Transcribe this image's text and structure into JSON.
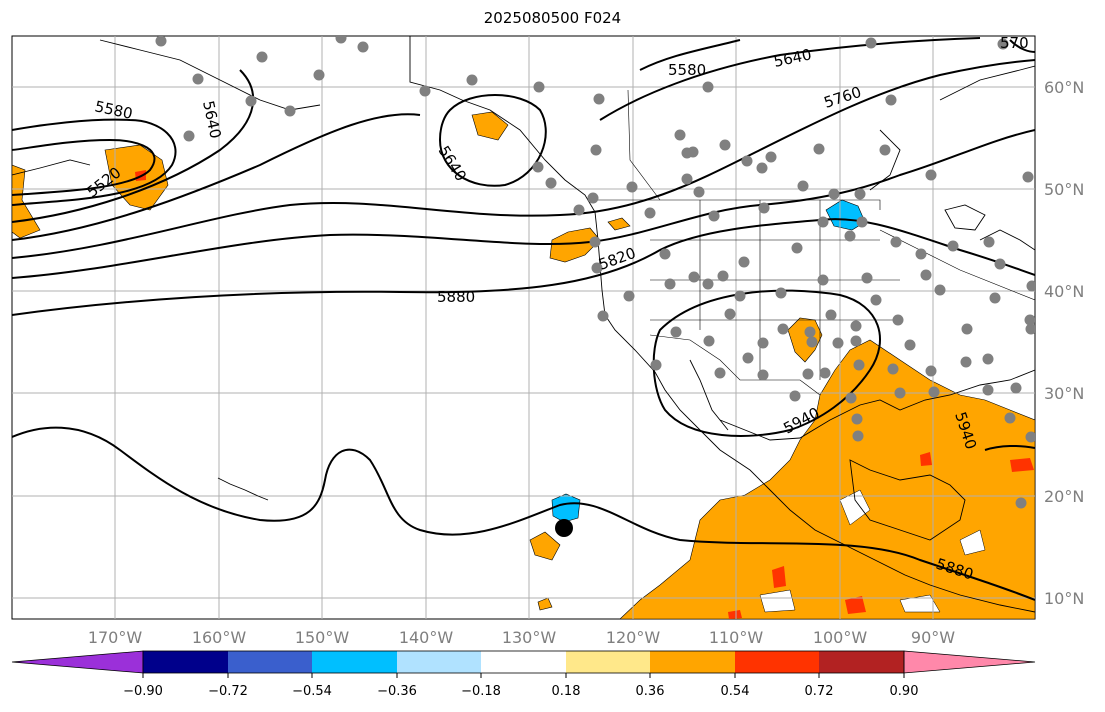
{
  "title": "2025080500 F024",
  "map": {
    "extent": {
      "lon_min": -180,
      "lon_max": -80,
      "lat_min": 8,
      "lat_max": 65
    },
    "lon_labels": [
      "170°W",
      "160°W",
      "150°W",
      "140°W",
      "130°W",
      "120°W",
      "110°W",
      "100°W",
      "90°W"
    ],
    "lat_labels": [
      "60°N",
      "50°N",
      "40°N",
      "30°N",
      "20°N",
      "10°N"
    ],
    "grid": true
  },
  "contours": {
    "variable_units": "geopotential height",
    "labels": [
      "5520",
      "5580",
      "5580",
      "5640",
      "5640",
      "5640",
      "5760",
      "5820",
      "5880",
      "5940",
      "5940",
      "5880",
      "570"
    ]
  },
  "colorbar": {
    "ticks": [
      "−0.90",
      "−0.72",
      "−0.54",
      "−0.36",
      "−0.18",
      "0.18",
      "0.36",
      "0.54",
      "0.72",
      "0.90"
    ],
    "colors": [
      "#9b30d9",
      "#00008b",
      "#3a5fcd",
      "#00bfff",
      "#b0e2ff",
      "#ffffff",
      "#ffe88a",
      "#ffa500",
      "#ff3300",
      "#b22222",
      "#ff88aa"
    ]
  },
  "shading_colors": {
    "orange": "#ffa500",
    "red_orange": "#ff3300",
    "blue": "#00bfff",
    "yellow": "#ffe88a"
  },
  "marker": {
    "label": ""
  }
}
